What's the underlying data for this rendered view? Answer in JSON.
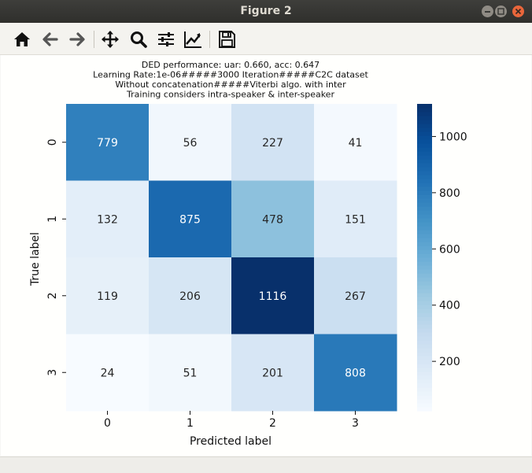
{
  "window": {
    "title": "Figure 2"
  },
  "toolbar": {
    "buttons": [
      {
        "name": "home-icon",
        "label": "Home"
      },
      {
        "name": "back-icon",
        "label": "Back"
      },
      {
        "name": "forward-icon",
        "label": "Forward"
      },
      {
        "name": "pan-icon",
        "label": "Pan"
      },
      {
        "name": "zoom-icon",
        "label": "Zoom"
      },
      {
        "name": "configure-subplots-icon",
        "label": "Configure subplots"
      },
      {
        "name": "edit-axis-icon",
        "label": "Edit axis"
      },
      {
        "name": "save-icon",
        "label": "Save"
      }
    ]
  },
  "colors": {
    "colormap": "Blues",
    "cell_text_dark": "#262626",
    "cell_text_light": "#ffffff"
  },
  "chart_data": {
    "type": "heatmap",
    "title_lines": [
      "DED performance: uar: 0.660, acc: 0.647",
      "Learning Rate:1e-06#####3000 Iteration#####C2C dataset",
      "Without concatenation#####Viterbi algo. with inter",
      "Training considers intra-speaker & inter-speaker"
    ],
    "xlabel": "Predicted label",
    "ylabel": "True label",
    "x_categories": [
      "0",
      "1",
      "2",
      "3"
    ],
    "y_categories": [
      "0",
      "1",
      "2",
      "3"
    ],
    "matrix": [
      [
        779,
        56,
        227,
        41
      ],
      [
        132,
        875,
        478,
        151
      ],
      [
        119,
        206,
        1116,
        267
      ],
      [
        24,
        51,
        201,
        808
      ]
    ],
    "colorbar": {
      "vmin": 24,
      "vmax": 1116,
      "ticks": [
        200,
        400,
        600,
        800,
        1000
      ],
      "tick_labels": [
        "200",
        "400",
        "600",
        "800",
        "1000"
      ]
    }
  }
}
